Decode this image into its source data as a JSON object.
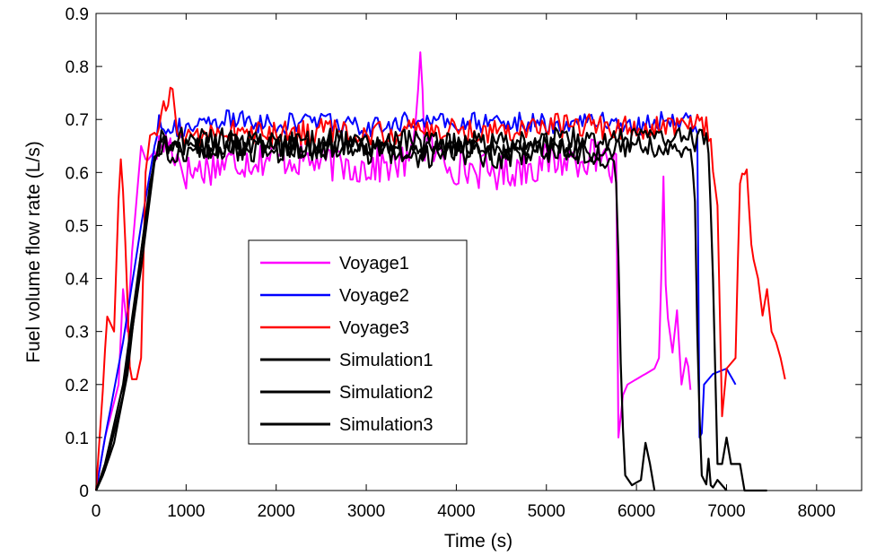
{
  "chart_data": {
    "type": "line",
    "xlabel": "Time (s)",
    "ylabel": "Fuel volume flow rate (L/s)",
    "xlim": [
      0,
      8500
    ],
    "ylim": [
      0,
      0.9
    ],
    "xticks": [
      0,
      1000,
      2000,
      3000,
      4000,
      5000,
      6000,
      7000,
      8000
    ],
    "xtick_labels": [
      "0",
      "1000",
      "2000",
      "3000",
      "4000",
      "5000",
      "6000",
      "7000",
      "8000"
    ],
    "yticks": [
      0,
      0.1,
      0.2,
      0.3,
      0.4,
      0.5,
      0.6,
      0.7,
      0.8,
      0.9
    ],
    "ytick_labels": [
      "0",
      "0.1",
      "0.2",
      "0.3",
      "0.4",
      "0.5",
      "0.6",
      "0.7",
      "0.8",
      "0.9"
    ],
    "grid": false,
    "legend_position": "center-left",
    "series": [
      {
        "name": "Voyage1",
        "color": "#ff00ff",
        "noise": 0.035,
        "points": [
          [
            0,
            0.0
          ],
          [
            100,
            0.1
          ],
          [
            250,
            0.2
          ],
          [
            300,
            0.38
          ],
          [
            350,
            0.3
          ],
          [
            400,
            0.45
          ],
          [
            450,
            0.55
          ],
          [
            500,
            0.65
          ],
          [
            560,
            0.62
          ],
          [
            650,
            0.64
          ],
          [
            800,
            0.66
          ],
          [
            1000,
            0.6
          ],
          [
            1500,
            0.62
          ],
          [
            2000,
            0.63
          ],
          [
            2500,
            0.62
          ],
          [
            3000,
            0.61
          ],
          [
            3500,
            0.62
          ],
          [
            3600,
            0.83
          ],
          [
            3650,
            0.65
          ],
          [
            4000,
            0.61
          ],
          [
            4500,
            0.6
          ],
          [
            5000,
            0.62
          ],
          [
            5500,
            0.63
          ],
          [
            5700,
            0.61
          ],
          [
            5780,
            0.6
          ],
          [
            5800,
            0.1
          ],
          [
            5850,
            0.18
          ],
          [
            5900,
            0.2
          ],
          [
            6000,
            0.21
          ],
          [
            6100,
            0.22
          ],
          [
            6200,
            0.23
          ],
          [
            6250,
            0.25
          ],
          [
            6280,
            0.43
          ],
          [
            6300,
            0.58
          ],
          [
            6330,
            0.35
          ],
          [
            6400,
            0.26
          ],
          [
            6450,
            0.34
          ],
          [
            6500,
            0.2
          ],
          [
            6560,
            0.26
          ],
          [
            6600,
            0.19
          ]
        ]
      },
      {
        "name": "Voyage2",
        "color": "#0000ff",
        "noise": 0.02,
        "points": [
          [
            0,
            0.0
          ],
          [
            100,
            0.1
          ],
          [
            300,
            0.28
          ],
          [
            500,
            0.5
          ],
          [
            600,
            0.6
          ],
          [
            700,
            0.7
          ],
          [
            800,
            0.69
          ],
          [
            1000,
            0.68
          ],
          [
            1500,
            0.7
          ],
          [
            2000,
            0.69
          ],
          [
            2500,
            0.7
          ],
          [
            3000,
            0.68
          ],
          [
            3500,
            0.7
          ],
          [
            4000,
            0.69
          ],
          [
            4500,
            0.7
          ],
          [
            5000,
            0.69
          ],
          [
            5500,
            0.7
          ],
          [
            6000,
            0.69
          ],
          [
            6500,
            0.7
          ],
          [
            6680,
            0.69
          ],
          [
            6700,
            0.1
          ],
          [
            6720,
            0.09
          ],
          [
            6750,
            0.2
          ],
          [
            6850,
            0.22
          ],
          [
            7000,
            0.23
          ],
          [
            7100,
            0.2
          ]
        ]
      },
      {
        "name": "Voyage3",
        "color": "#ff0000",
        "noise": 0.025,
        "points": [
          [
            0,
            0.0
          ],
          [
            80,
            0.2
          ],
          [
            120,
            0.33
          ],
          [
            200,
            0.3
          ],
          [
            250,
            0.55
          ],
          [
            280,
            0.64
          ],
          [
            330,
            0.45
          ],
          [
            380,
            0.21
          ],
          [
            450,
            0.21
          ],
          [
            500,
            0.25
          ],
          [
            550,
            0.6
          ],
          [
            600,
            0.67
          ],
          [
            700,
            0.68
          ],
          [
            850,
            0.77
          ],
          [
            900,
            0.67
          ],
          [
            1000,
            0.67
          ],
          [
            1500,
            0.68
          ],
          [
            2000,
            0.67
          ],
          [
            2500,
            0.68
          ],
          [
            3000,
            0.67
          ],
          [
            3500,
            0.68
          ],
          [
            4000,
            0.68
          ],
          [
            4500,
            0.68
          ],
          [
            5000,
            0.69
          ],
          [
            5500,
            0.69
          ],
          [
            6000,
            0.68
          ],
          [
            6500,
            0.69
          ],
          [
            6800,
            0.68
          ],
          [
            6900,
            0.55
          ],
          [
            6950,
            0.14
          ],
          [
            7000,
            0.23
          ],
          [
            7100,
            0.25
          ],
          [
            7150,
            0.6
          ],
          [
            7220,
            0.62
          ],
          [
            7280,
            0.45
          ],
          [
            7350,
            0.4
          ],
          [
            7400,
            0.33
          ],
          [
            7450,
            0.38
          ],
          [
            7500,
            0.3
          ],
          [
            7550,
            0.28
          ],
          [
            7600,
            0.25
          ],
          [
            7650,
            0.21
          ]
        ]
      },
      {
        "name": "Simulation1",
        "color": "#000000",
        "noise": 0.025,
        "points": [
          [
            0,
            0.0
          ],
          [
            80,
            0.03
          ],
          [
            200,
            0.09
          ],
          [
            350,
            0.22
          ],
          [
            500,
            0.45
          ],
          [
            600,
            0.58
          ],
          [
            700,
            0.66
          ],
          [
            800,
            0.64
          ],
          [
            1000,
            0.64
          ],
          [
            1500,
            0.65
          ],
          [
            2000,
            0.64
          ],
          [
            2500,
            0.65
          ],
          [
            3000,
            0.64
          ],
          [
            3500,
            0.63
          ],
          [
            4000,
            0.64
          ],
          [
            4500,
            0.63
          ],
          [
            5000,
            0.64
          ],
          [
            5500,
            0.64
          ],
          [
            5700,
            0.63
          ],
          [
            5780,
            0.6
          ],
          [
            5830,
            0.2
          ],
          [
            5870,
            0.03
          ],
          [
            5950,
            0.01
          ],
          [
            6050,
            0.02
          ],
          [
            6100,
            0.09
          ],
          [
            6150,
            0.05
          ],
          [
            6200,
            0.0
          ]
        ]
      },
      {
        "name": "Simulation2",
        "color": "#000000",
        "noise": 0.02,
        "points": [
          [
            0,
            0.0
          ],
          [
            100,
            0.05
          ],
          [
            300,
            0.2
          ],
          [
            500,
            0.45
          ],
          [
            650,
            0.63
          ],
          [
            750,
            0.65
          ],
          [
            1000,
            0.65
          ],
          [
            1500,
            0.64
          ],
          [
            2000,
            0.65
          ],
          [
            2500,
            0.64
          ],
          [
            3000,
            0.65
          ],
          [
            3500,
            0.64
          ],
          [
            4000,
            0.65
          ],
          [
            4500,
            0.64
          ],
          [
            5000,
            0.65
          ],
          [
            5500,
            0.64
          ],
          [
            6000,
            0.65
          ],
          [
            6500,
            0.64
          ],
          [
            6640,
            0.62
          ],
          [
            6680,
            0.25
          ],
          [
            6720,
            0.03
          ],
          [
            6780,
            0.01
          ],
          [
            6800,
            0.06
          ],
          [
            6830,
            0.0
          ],
          [
            6900,
            0.02
          ],
          [
            7000,
            0.0
          ]
        ]
      },
      {
        "name": "Simulation3",
        "color": "#000000",
        "noise": 0.025,
        "points": [
          [
            0,
            0.0
          ],
          [
            100,
            0.04
          ],
          [
            300,
            0.18
          ],
          [
            500,
            0.42
          ],
          [
            650,
            0.62
          ],
          [
            750,
            0.67
          ],
          [
            1000,
            0.66
          ],
          [
            1500,
            0.66
          ],
          [
            2000,
            0.65
          ],
          [
            2500,
            0.66
          ],
          [
            3000,
            0.65
          ],
          [
            3500,
            0.66
          ],
          [
            4000,
            0.65
          ],
          [
            4500,
            0.66
          ],
          [
            5000,
            0.66
          ],
          [
            5500,
            0.66
          ],
          [
            6000,
            0.66
          ],
          [
            6500,
            0.66
          ],
          [
            6800,
            0.66
          ],
          [
            6850,
            0.4
          ],
          [
            6900,
            0.05
          ],
          [
            6950,
            0.05
          ],
          [
            7000,
            0.1
          ],
          [
            7050,
            0.05
          ],
          [
            7150,
            0.05
          ],
          [
            7200,
            0.0
          ],
          [
            7450,
            0.0
          ]
        ]
      }
    ]
  }
}
